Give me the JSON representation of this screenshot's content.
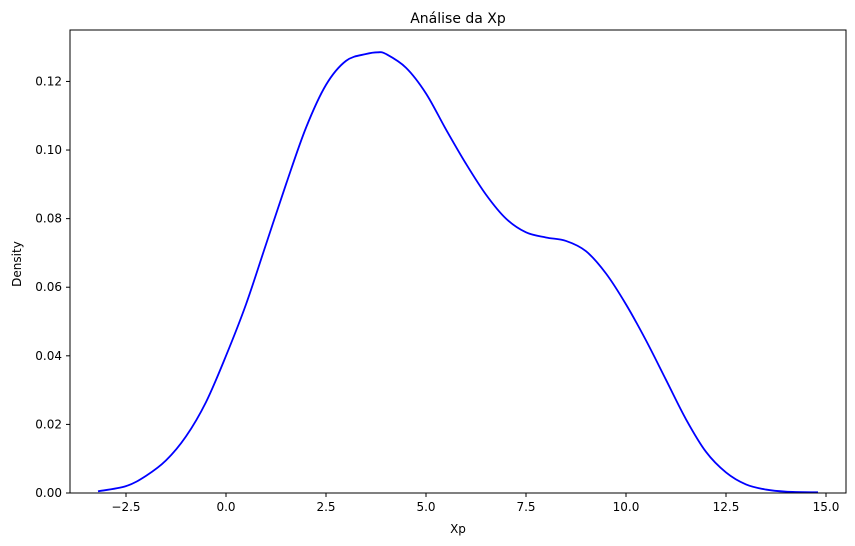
{
  "chart_data": {
    "type": "line",
    "title": "Análise da Xp",
    "xlabel": "Xp",
    "ylabel": "Density",
    "xlim": [
      -3.9,
      15.5
    ],
    "ylim": [
      0,
      0.135
    ],
    "xticks": [
      -2.5,
      0.0,
      2.5,
      5.0,
      7.5,
      10.0,
      12.5,
      15.0
    ],
    "xtick_labels": [
      "−2.5",
      "0.0",
      "2.5",
      "5.0",
      "7.5",
      "10.0",
      "12.5",
      "15.0"
    ],
    "yticks": [
      0.0,
      0.02,
      0.04,
      0.06,
      0.08,
      0.1,
      0.12
    ],
    "ytick_labels": [
      "0.00",
      "0.02",
      "0.04",
      "0.06",
      "0.08",
      "0.10",
      "0.12"
    ],
    "grid": false,
    "line_color": "#0000ff",
    "series": [
      {
        "x": [
          -3.2,
          -2.5,
          -2.0,
          -1.5,
          -1.0,
          -0.5,
          0.0,
          0.5,
          1.0,
          1.5,
          2.0,
          2.5,
          3.0,
          3.5,
          3.8,
          4.0,
          4.5,
          5.0,
          5.5,
          6.0,
          6.5,
          7.0,
          7.5,
          8.0,
          8.5,
          9.0,
          9.5,
          10.0,
          10.5,
          11.0,
          11.5,
          12.0,
          12.5,
          13.0,
          13.5,
          14.0,
          14.8
        ],
        "y": [
          0.0005,
          0.002,
          0.005,
          0.0095,
          0.0165,
          0.0265,
          0.04,
          0.055,
          0.0725,
          0.09,
          0.1065,
          0.119,
          0.126,
          0.128,
          0.1285,
          0.128,
          0.124,
          0.1165,
          0.106,
          0.096,
          0.087,
          0.08,
          0.076,
          0.0745,
          0.0735,
          0.0705,
          0.064,
          0.055,
          0.0445,
          0.033,
          0.0215,
          0.012,
          0.006,
          0.0025,
          0.001,
          0.0004,
          0.0002
        ]
      }
    ]
  }
}
